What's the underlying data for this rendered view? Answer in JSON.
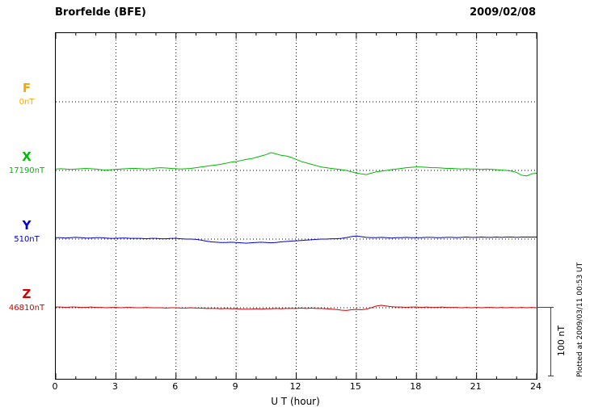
{
  "header": {
    "station": "Brorfelde (BFE)",
    "date": "2009/02/08"
  },
  "axis": {
    "xlabel": "U T (hour)",
    "ticks": [
      "0",
      "3",
      "6",
      "9",
      "12",
      "15",
      "18",
      "21",
      "24"
    ]
  },
  "traces": [
    {
      "label": "F",
      "value_label": "0nT",
      "color": "#FFA500"
    },
    {
      "label": "X",
      "value_label": "17190nT",
      "color": "#00BB00"
    },
    {
      "label": "Y",
      "value_label": "510nT",
      "color": "#0000D0"
    },
    {
      "label": "Z",
      "value_label": "46810nT",
      "color": "#D40000"
    }
  ],
  "scale_bar": {
    "label": "100 nT"
  },
  "footer": {
    "plotted_at": "Plotted at 2009/03/11 00:53 UT"
  },
  "chart_data": {
    "type": "line",
    "title": "Brorfelde (BFE) magnetogram 2009/02/08",
    "xlabel": "U T (hour)",
    "ylabel": "nT",
    "xlim": [
      0,
      24
    ],
    "x_tick_step": 3,
    "step_hours": 0.25,
    "grid": "dotted-vertical-at-3h, dotted-horizontal-baselines",
    "series": [
      {
        "name": "F",
        "baseline_nT": 0,
        "color": "#FFA500",
        "values": []
      },
      {
        "name": "X",
        "baseline_nT": 17190,
        "color": "#00BB00",
        "values": [
          2,
          2.5,
          2,
          1.5,
          2,
          2.5,
          3,
          2.5,
          2,
          1,
          0.5,
          1,
          1.5,
          2,
          2.5,
          3,
          3,
          2.5,
          2,
          2.5,
          3.5,
          4,
          3.5,
          3,
          2.5,
          2,
          2.5,
          3,
          4,
          5,
          6,
          7,
          8,
          9,
          10.5,
          12,
          13,
          14.5,
          16,
          17,
          19,
          21,
          23,
          26,
          24,
          22,
          21,
          19,
          16,
          13,
          11,
          9,
          7,
          5,
          4,
          3,
          2,
          1,
          0,
          -2,
          -4,
          -5,
          -6,
          -4,
          -2,
          -1,
          0,
          1,
          2,
          3,
          4,
          4.5,
          5,
          5,
          4.5,
          4,
          4,
          3.5,
          3,
          3,
          2.5,
          2,
          2.5,
          2,
          2,
          1.5,
          2,
          1.5,
          1,
          0.5,
          0,
          -1,
          -3,
          -7,
          -8,
          -5,
          -4
        ]
      },
      {
        "name": "Y",
        "baseline_nT": 510,
        "color": "#0000D0",
        "values": [
          2,
          2,
          1.5,
          2,
          2.5,
          2,
          1.5,
          1.5,
          2,
          2,
          1.5,
          1,
          1,
          1.5,
          1.5,
          1,
          1,
          1,
          0.5,
          1,
          1,
          0.5,
          0.5,
          1,
          1,
          0.5,
          0,
          0,
          -0.5,
          -1.5,
          -3,
          -4,
          -4.5,
          -5,
          -5,
          -4.5,
          -5,
          -5.5,
          -6,
          -5.5,
          -5,
          -4.5,
          -5,
          -5.5,
          -5,
          -4,
          -3.5,
          -3,
          -2.5,
          -2,
          -1.5,
          -1,
          -0.5,
          0,
          0,
          0.5,
          0.5,
          1,
          2,
          3.5,
          4.5,
          3.5,
          2.5,
          2,
          2,
          2.5,
          2,
          1.5,
          2,
          2,
          2.5,
          2,
          2,
          2,
          2.5,
          2.5,
          2,
          2,
          2.5,
          2.5,
          2,
          2.5,
          3,
          2.5,
          2.5,
          3,
          2.5,
          2.5,
          3,
          2.5,
          3,
          3,
          2.5,
          3,
          3,
          3,
          3
        ]
      },
      {
        "name": "Z",
        "baseline_nT": 46810,
        "color": "#D40000",
        "values": [
          1,
          1,
          0.5,
          1,
          1,
          0.5,
          0.5,
          1,
          0.5,
          0.5,
          0,
          0.5,
          0.5,
          0,
          0.5,
          0.5,
          0,
          0,
          0.5,
          0,
          0,
          0,
          -0.5,
          0,
          0,
          -0.5,
          -0.5,
          0,
          -0.5,
          -0.5,
          -1,
          -1,
          -1,
          -1.5,
          -1,
          -1.5,
          -1.5,
          -2,
          -2,
          -2,
          -1.5,
          -2,
          -1.5,
          -1.5,
          -1,
          -1.5,
          -1,
          -1,
          -1,
          -0.5,
          -1,
          -0.5,
          -1,
          -1,
          -1.5,
          -2,
          -2.5,
          -3.5,
          -4,
          -3,
          -2.5,
          -3,
          -2,
          0,
          2.5,
          3.5,
          2.5,
          1.5,
          1,
          1,
          0.5,
          1,
          1,
          0.5,
          1,
          0.5,
          0.5,
          1,
          0.5,
          0.5,
          0.5,
          0,
          0.5,
          0,
          0.5,
          0,
          0.5,
          0.5,
          0,
          0.5,
          0,
          0.5,
          0,
          0.5,
          0,
          0.5,
          0
        ]
      }
    ],
    "scale_bar_nT": 100
  }
}
